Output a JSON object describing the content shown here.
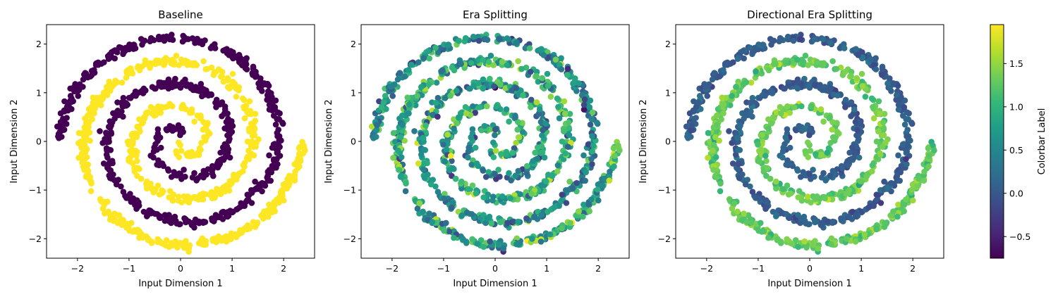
{
  "chart_data": [
    {
      "type": "scatter",
      "title": "Baseline",
      "xlabel": "Input Dimension 1",
      "ylabel": "Input Dimension 2",
      "xlim": [
        -2.6,
        2.6
      ],
      "ylim": [
        -2.4,
        2.4
      ],
      "xticks": [
        -2,
        -1,
        0,
        1,
        2
      ],
      "yticks": [
        -2,
        -1,
        0,
        1,
        2
      ],
      "grid": false,
      "color_mode": "binary",
      "description_of_points": "two interleaved Archimedean spirals, each about 2.5 turns from the origin out to radius ~2.35; points colored by class label 0 (dark purple) or 1 (yellow)",
      "series": [
        {
          "color_value": -0.75,
          "phase_deg": 0
        },
        {
          "color_value": 1.95,
          "phase_deg": 180
        }
      ]
    },
    {
      "type": "scatter",
      "title": "Era Splitting",
      "xlabel": "Input Dimension 1",
      "ylabel": "Input Dimension 2",
      "xlim": [
        -2.6,
        2.6
      ],
      "ylim": [
        -2.4,
        2.4
      ],
      "xticks": [
        -2,
        -1,
        0,
        1,
        2
      ],
      "yticks": [
        -2,
        -1,
        0,
        1,
        2
      ],
      "grid": false,
      "color_mode": "noisy",
      "description_of_points": "same two spirals colored by model prediction; mixed teal/green/dark-blue with little separation between arms",
      "series": [
        {
          "color_value_mean": 0.6,
          "color_value_spread": 0.9,
          "phase_deg": 0
        },
        {
          "color_value_mean": 0.9,
          "color_value_spread": 0.9,
          "phase_deg": 180
        }
      ]
    },
    {
      "type": "scatter",
      "title": "Directional Era Splitting",
      "xlabel": "Input Dimension 1",
      "ylabel": "Input Dimension 2",
      "xlim": [
        -2.6,
        2.6
      ],
      "ylim": [
        -2.4,
        2.4
      ],
      "xticks": [
        -2,
        -1,
        0,
        1,
        2
      ],
      "yticks": [
        -2,
        -1,
        0,
        1,
        2
      ],
      "grid": false,
      "color_mode": "separated",
      "description_of_points": "same two spirals colored by model prediction; one arm mostly dark blue (~0), other arm mostly light green (~1.3)",
      "series": [
        {
          "color_value_mean": 0.05,
          "color_value_spread": 0.25,
          "phase_deg": 0
        },
        {
          "color_value_mean": 1.3,
          "color_value_spread": 0.3,
          "phase_deg": 180
        }
      ]
    }
  ],
  "colorbar": {
    "label": "Colorbar Label",
    "colormap": "viridis",
    "range": [
      -0.75,
      1.95
    ],
    "ticks": [
      -0.5,
      0.0,
      0.5,
      1.0,
      1.5
    ],
    "tick_labels": [
      "−0.5",
      "0.0",
      "0.5",
      "1.0",
      "1.5"
    ]
  },
  "colors": {
    "viridis_stops": [
      "#440154",
      "#482878",
      "#3e4989",
      "#31688e",
      "#26828e",
      "#1f9e89",
      "#35b779",
      "#6ece58",
      "#b5de2b",
      "#fde725"
    ]
  }
}
